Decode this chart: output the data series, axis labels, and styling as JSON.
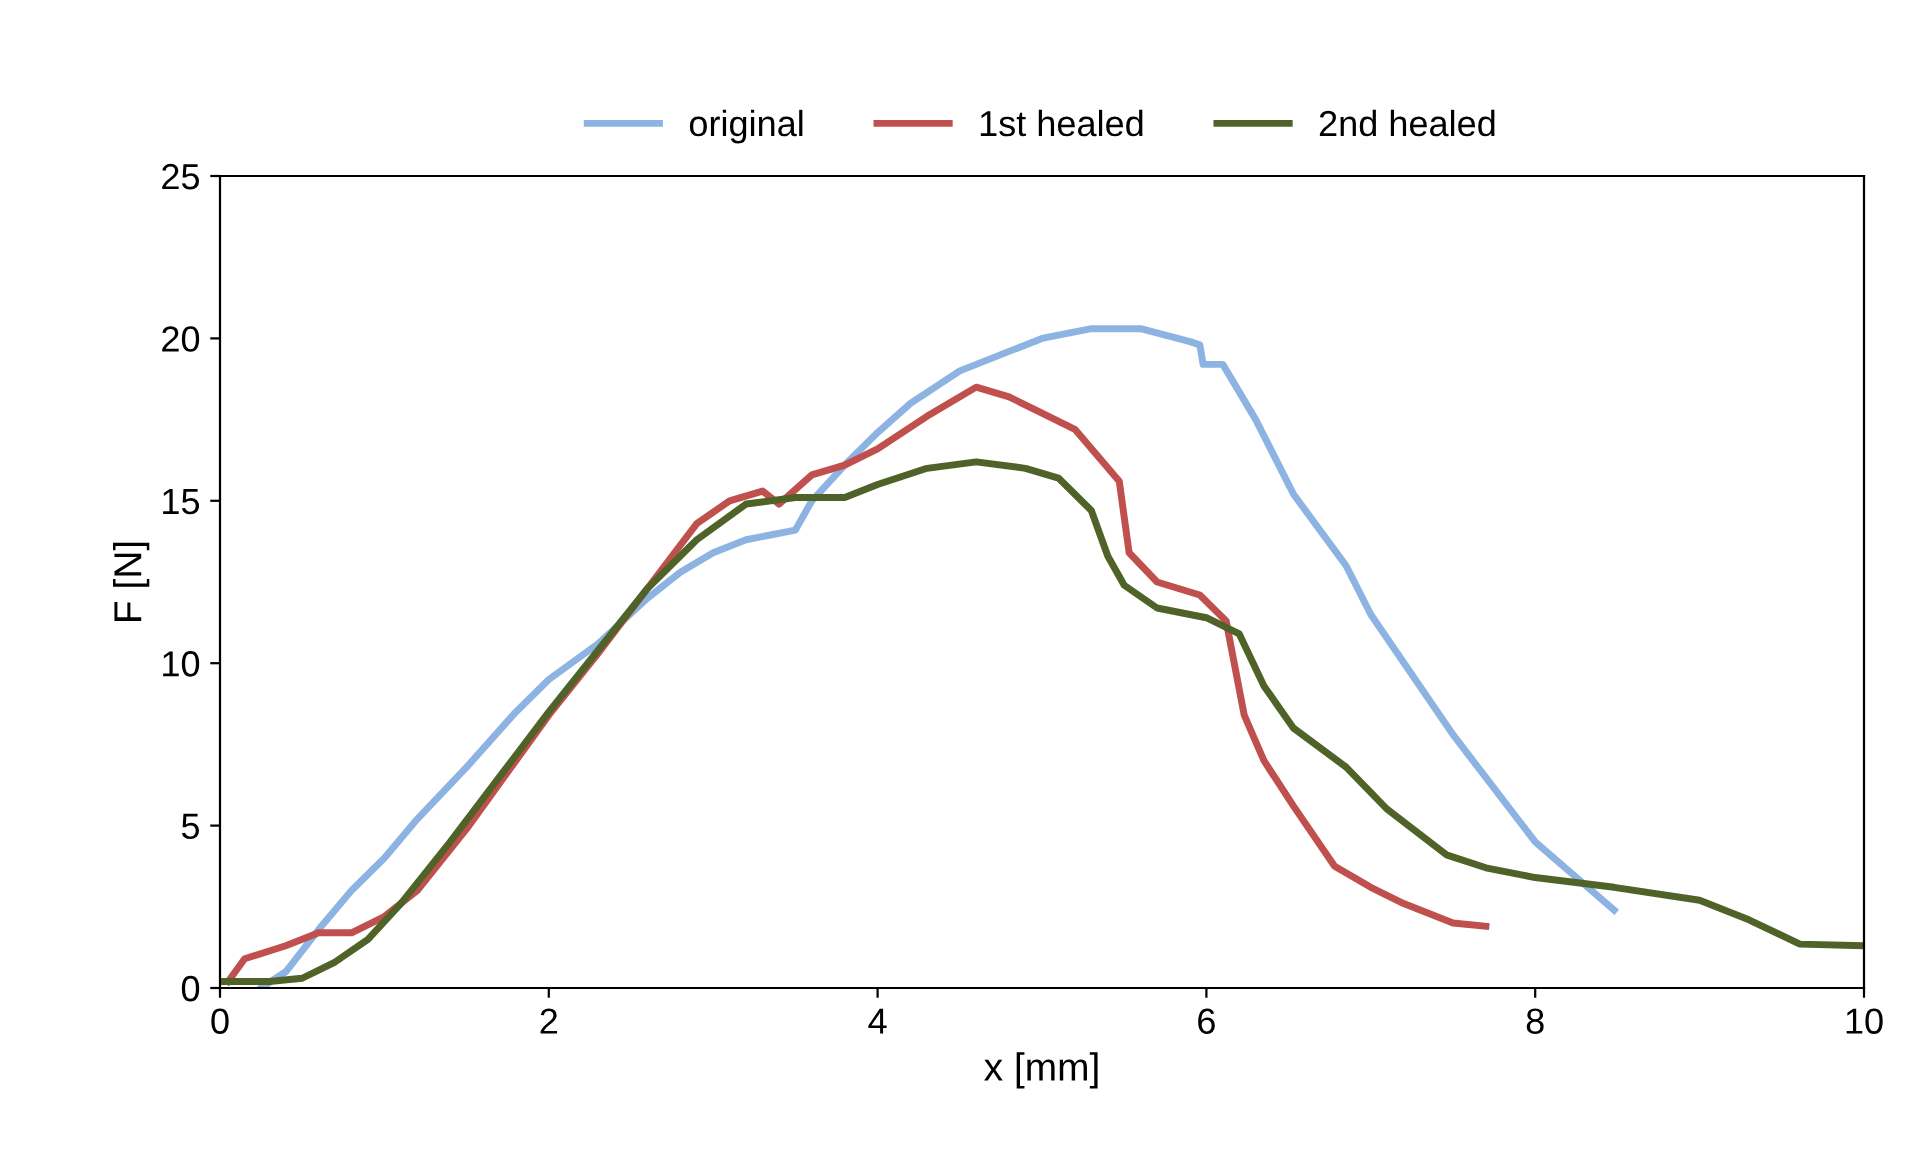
{
  "chart_data": {
    "type": "line",
    "xlabel": "x [mm]",
    "ylabel": "F [N]",
    "xlim": [
      0,
      10
    ],
    "xticks": [
      0,
      2,
      4,
      6,
      8,
      10
    ],
    "ylim": [
      0,
      25
    ],
    "yticks": [
      0,
      5,
      10,
      15,
      20,
      25
    ],
    "grid": false,
    "legend": "top",
    "marker": "none",
    "line_style": "solid",
    "series": [
      {
        "name": "original",
        "color": "#8db3e2",
        "x": [
          0.25,
          0.4,
          0.6,
          0.8,
          1.0,
          1.2,
          1.5,
          1.8,
          2.0,
          2.3,
          2.6,
          2.8,
          3.0,
          3.2,
          3.5,
          3.6,
          3.8,
          4.0,
          4.2,
          4.5,
          4.8,
          5.0,
          5.3,
          5.6,
          5.9,
          5.96,
          5.98,
          6.1,
          6.3,
          6.53,
          6.85,
          7.0,
          7.5,
          8.0,
          8.48
        ],
        "values": [
          0,
          0.5,
          1.8,
          3,
          4,
          5.2,
          6.8,
          8.5,
          9.5,
          10.6,
          12,
          12.8,
          13.4,
          13.8,
          14.1,
          15,
          16.1,
          17.1,
          18,
          19,
          19.6,
          20,
          20.3,
          20.3,
          19.9,
          19.8,
          19.2,
          19.2,
          17.5,
          15.2,
          13,
          11.5,
          7.8,
          4.5,
          2.4
        ]
      },
      {
        "name": "1st healed",
        "color": "#c0504d",
        "x": [
          0.05,
          0.15,
          0.4,
          0.6,
          0.8,
          1.0,
          1.2,
          1.5,
          1.8,
          2.0,
          2.3,
          2.6,
          2.9,
          3.1,
          3.3,
          3.4,
          3.6,
          3.8,
          4.0,
          4.3,
          4.6,
          4.8,
          5.0,
          5.2,
          5.47,
          5.53,
          5.7,
          5.96,
          6.12,
          6.23,
          6.35,
          6.53,
          6.78,
          7.0,
          7.2,
          7.5,
          7.7
        ],
        "values": [
          0.2,
          0.9,
          1.3,
          1.7,
          1.7,
          2.2,
          3.0,
          4.9,
          7.0,
          8.4,
          10.3,
          12.3,
          14.3,
          15,
          15.3,
          14.9,
          15.8,
          16.1,
          16.6,
          17.6,
          18.5,
          18.2,
          17.7,
          17.2,
          15.6,
          13.4,
          12.5,
          12.1,
          11.3,
          8.4,
          7.0,
          5.6,
          3.75,
          3.1,
          2.6,
          2.0,
          1.9
        ]
      },
      {
        "name": "2nd healed",
        "color": "#4f6228",
        "x": [
          0,
          0.3,
          0.5,
          0.7,
          0.9,
          1.1,
          1.4,
          1.7,
          2.0,
          2.3,
          2.6,
          2.9,
          3.2,
          3.5,
          3.8,
          4.0,
          4.3,
          4.6,
          4.9,
          5.1,
          5.3,
          5.4,
          5.5,
          5.7,
          6.0,
          6.2,
          6.35,
          6.53,
          6.85,
          7.1,
          7.46,
          7.7,
          8.0,
          8.48,
          9.0,
          9.3,
          9.61,
          10.0
        ],
        "values": [
          0.2,
          0.2,
          0.3,
          0.8,
          1.5,
          2.6,
          4.5,
          6.5,
          8.5,
          10.4,
          12.3,
          13.8,
          14.9,
          15.1,
          15.1,
          15.5,
          16.0,
          16.2,
          16.0,
          15.7,
          14.7,
          13.3,
          12.4,
          11.7,
          11.4,
          10.9,
          9.3,
          8.0,
          6.8,
          5.5,
          4.1,
          3.7,
          3.4,
          3.1,
          2.7,
          2.1,
          1.35,
          1.3
        ]
      }
    ]
  }
}
